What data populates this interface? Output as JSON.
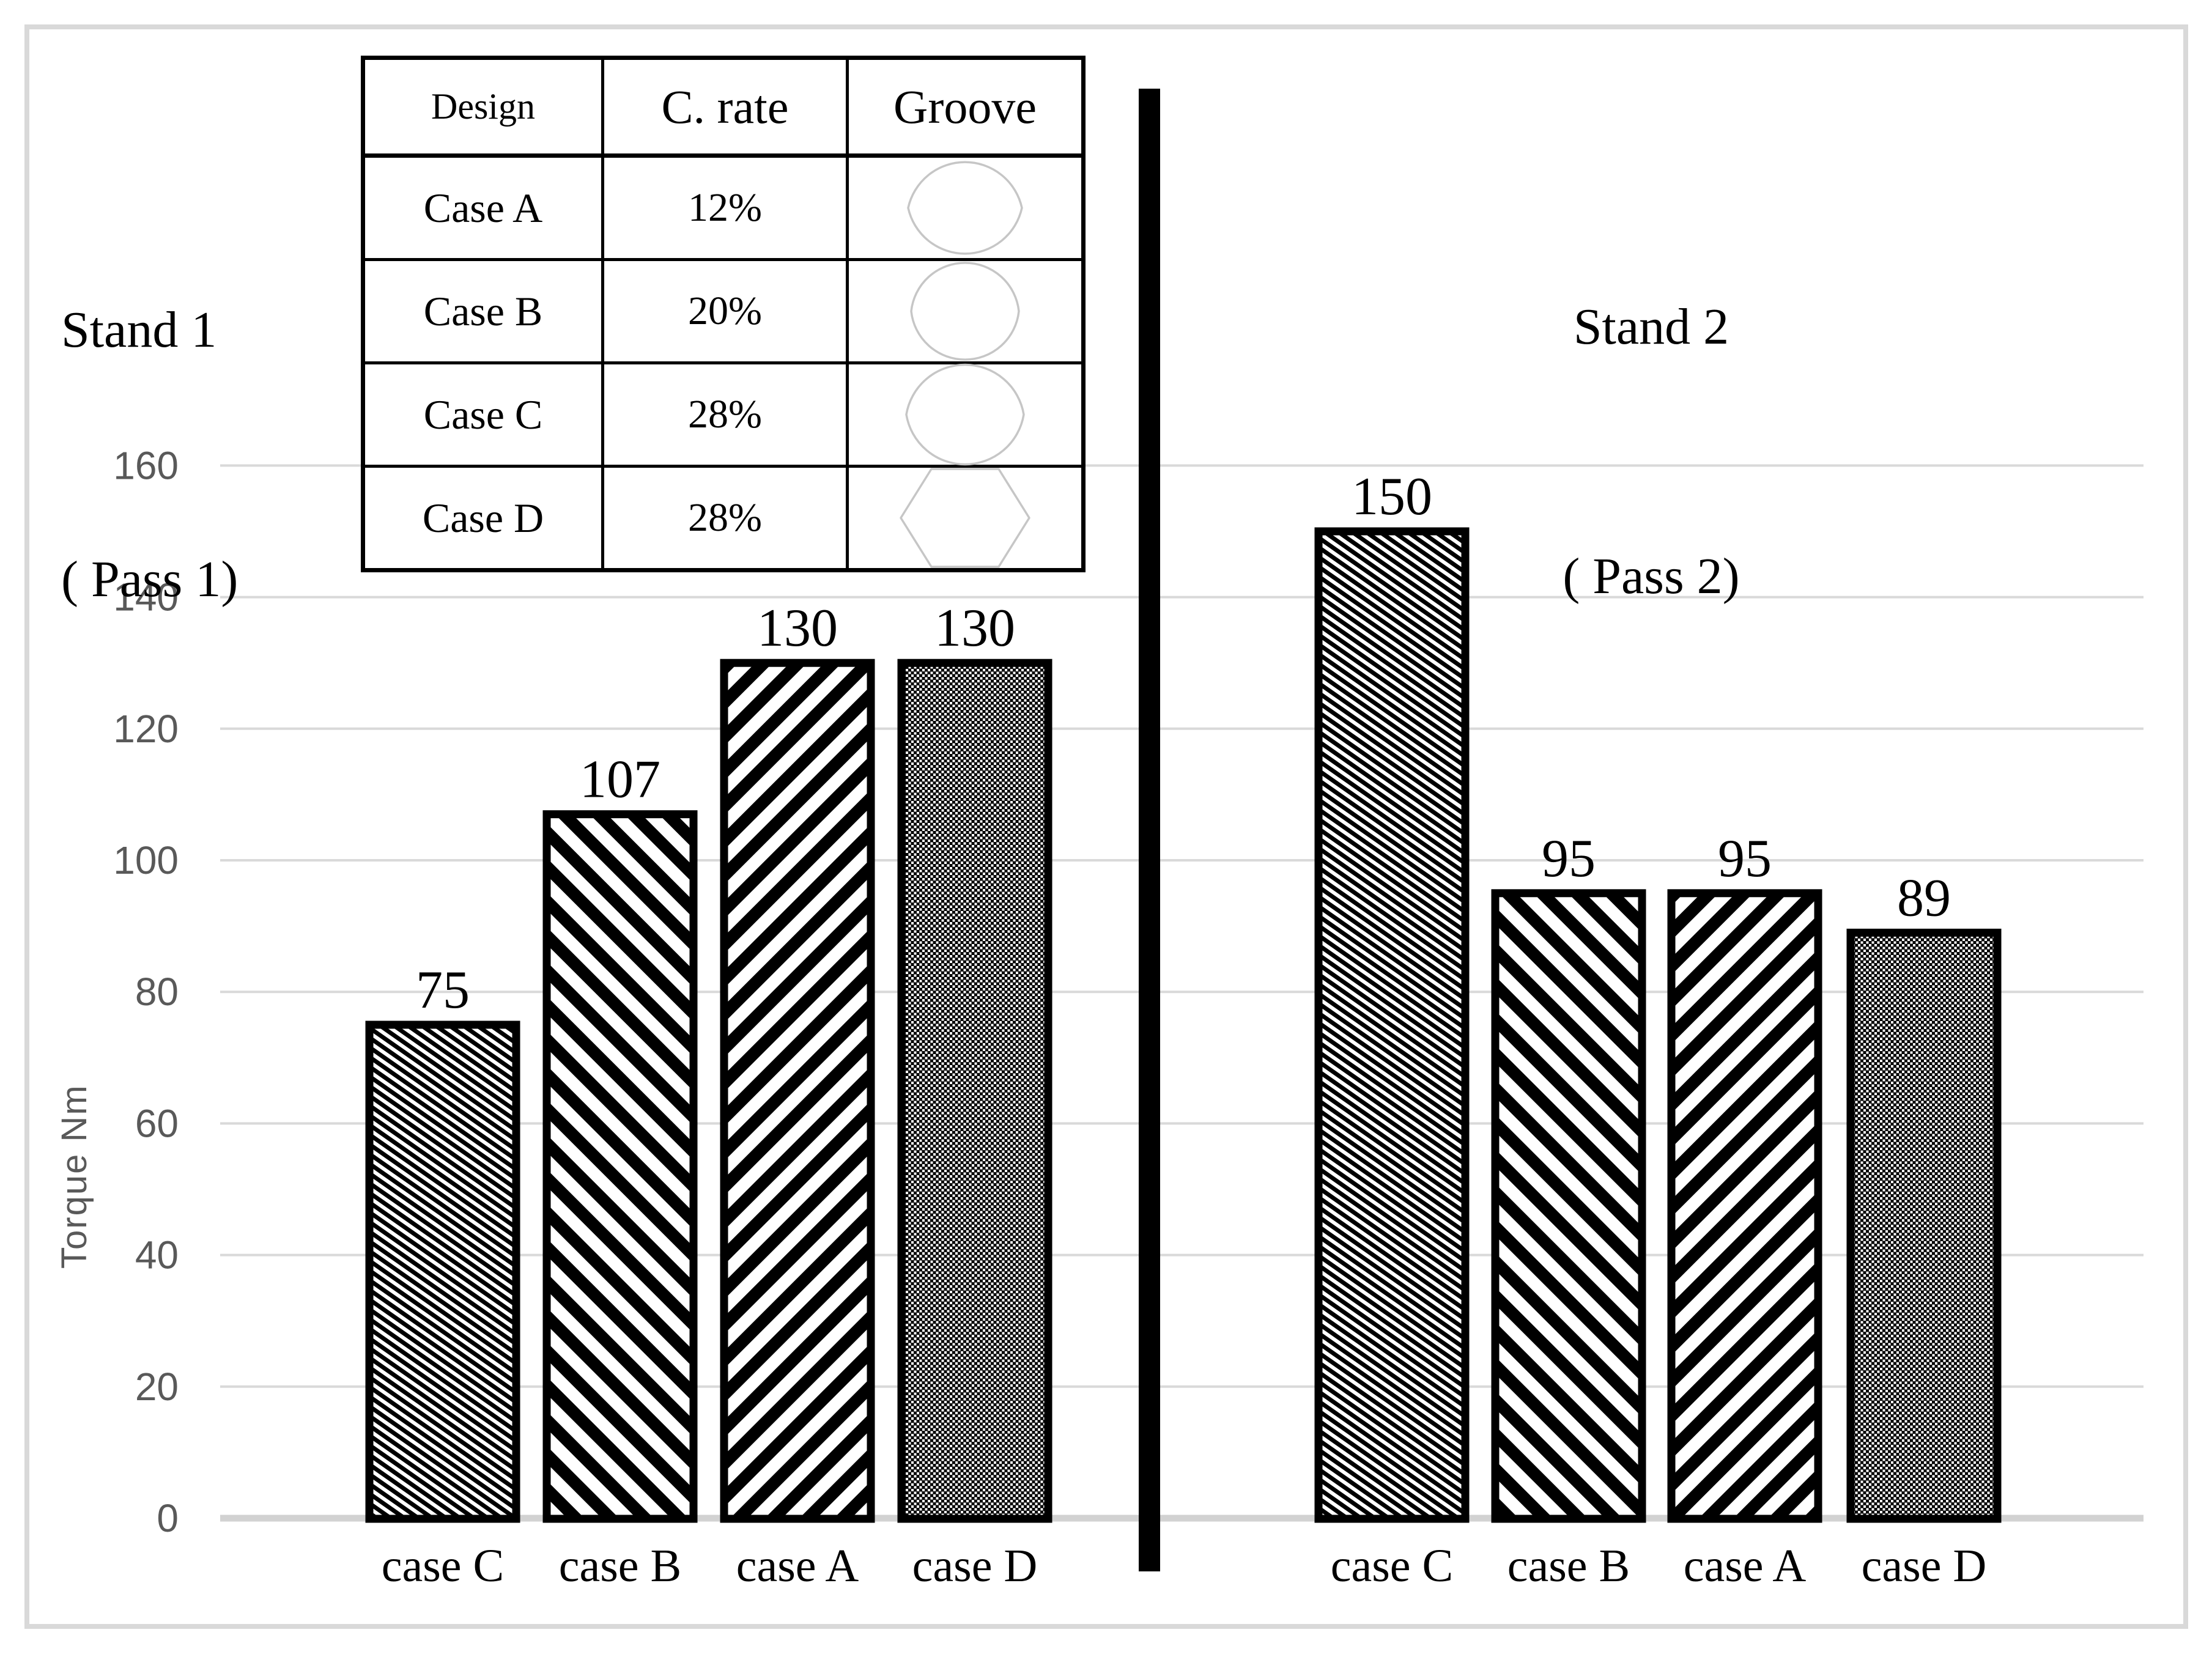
{
  "titles": {
    "stand1_line1": "Stand 1",
    "stand1_line2": "( Pass 1)",
    "stand2_line1": "Stand 2",
    "stand2_line2": "( Pass 2)"
  },
  "table": {
    "headers": {
      "design": "Design",
      "c_rate": "C. rate",
      "groove": "Groove"
    },
    "rows": [
      {
        "design": "Case A",
        "c_rate": "12%",
        "groove_shape": "oval-pointed-sides"
      },
      {
        "design": "Case B",
        "c_rate": "20%",
        "groove_shape": "round-pointed-sides"
      },
      {
        "design": "Case C",
        "c_rate": "28%",
        "groove_shape": "round-pointed-sides-large"
      },
      {
        "design": "Case D",
        "c_rate": "28%",
        "groove_shape": "hexagon-rounded"
      }
    ]
  },
  "chart_data": {
    "type": "bar",
    "ylabel": "Torque Nm",
    "ylim": [
      0,
      170
    ],
    "yticks": [
      0,
      20,
      40,
      60,
      80,
      100,
      120,
      140,
      160
    ],
    "grid": true,
    "legend": "none",
    "groups": [
      {
        "name": "Stand 1 ( Pass 1)",
        "categories": [
          "case C",
          "case B",
          "case A",
          "case D"
        ],
        "values": [
          75,
          107,
          130,
          130
        ],
        "patterns": [
          "fine-backslash",
          "thick-backslash",
          "thick-slash",
          "dot-grid"
        ]
      },
      {
        "name": "Stand 2 ( Pass 2)",
        "categories": [
          "case C",
          "case B",
          "case A",
          "case D"
        ],
        "values": [
          150,
          95,
          95,
          89
        ],
        "patterns": [
          "fine-backslash",
          "thick-backslash",
          "thick-slash",
          "dot-grid"
        ]
      }
    ]
  },
  "colors": {
    "text": "#000000",
    "axis_text": "#595959",
    "gridline": "#d9d9d9",
    "axis_line": "#d2d2d2",
    "frame": "#d9d9d9",
    "bar_outline": "#000000",
    "divider": "#000000",
    "groove_outline": "#c6c6c6"
  }
}
